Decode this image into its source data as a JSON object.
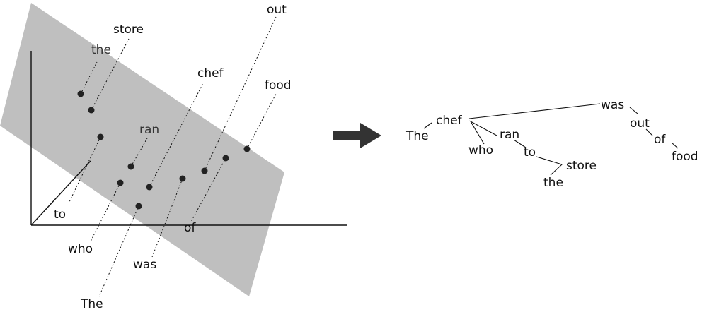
{
  "embedding": {
    "plane_color": "#bfbfbf",
    "point_color": "#222222",
    "words": {
      "the": "the",
      "store": "store",
      "ran": "ran",
      "chef": "chef",
      "out": "out",
      "food": "food",
      "to": "to",
      "who": "who",
      "of": "of",
      "was": "was",
      "The": "The"
    }
  },
  "arrow": {
    "icon": "right-arrow-icon",
    "color": "#333333"
  },
  "tree": {
    "words": {
      "was": "was",
      "chef": "chef",
      "The": "The",
      "ran": "ran",
      "who": "who",
      "to": "to",
      "store": "store",
      "the": "the",
      "out": "out",
      "of": "of",
      "food": "food"
    }
  }
}
